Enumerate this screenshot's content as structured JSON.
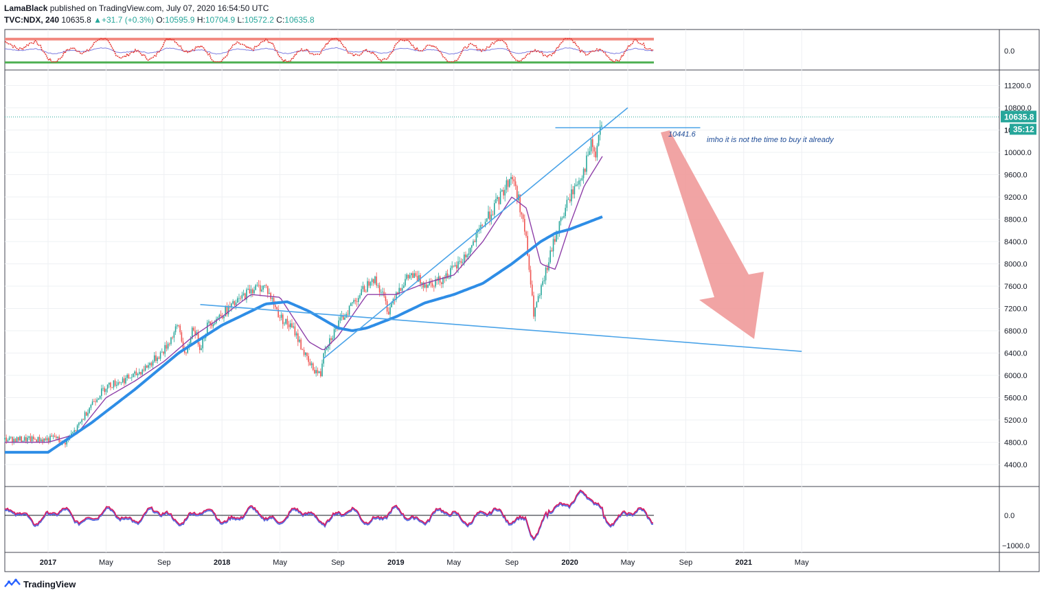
{
  "header": {
    "publisher": "LamaBlack",
    "published_text": "published on TradingView.com, July 07, 2020 16:54:50 UTC",
    "symbol": "TVC:NDX, 240",
    "last": "10635.8",
    "change": "+31.7 (+0.3%)",
    "o_label": "O:",
    "o_value": "10595.9",
    "h_label": "H:",
    "h_value": "10704.9",
    "l_label": "L:",
    "l_value": "10572.2",
    "c_label": "C:",
    "c_value": "10635.8"
  },
  "footer": {
    "brand": "TradingView"
  },
  "colors": {
    "up": "#26a69a",
    "down": "#ef5350",
    "trendline": "#4aa3e8",
    "ma_slow": "#2e8de6",
    "ma_fast": "#8e3fa8",
    "arrow": "#ef9a9a",
    "osc_red": "#e53935",
    "osc_blue": "#7e7ee0",
    "band_top": "#f28b82",
    "band_bottom": "#4caf50"
  },
  "chart_data": {
    "type": "candlestick",
    "symbol": "TVC:NDX",
    "ylim": [
      4000,
      11500
    ],
    "price_ticks": [
      "11200.0",
      "10800.0",
      "10400.0",
      "10000.0",
      "9600.0",
      "9200.0",
      "8800.0",
      "8400.0",
      "8000.0",
      "7600.0",
      "7200.0",
      "6800.0",
      "6400.0",
      "6000.0",
      "5600.0",
      "5200.0",
      "4800.0",
      "4400.0"
    ],
    "x_ticks": [
      "2017",
      "May",
      "Sep",
      "2018",
      "May",
      "Sep",
      "2019",
      "May",
      "Sep",
      "2020",
      "May",
      "Sep",
      "2021",
      "May"
    ],
    "last_price_label": "10635.8",
    "countdown_label": "35:12",
    "partial_tick_label": "10",
    "top_panel": {
      "tick": "0.0"
    },
    "bottom_panel": {
      "ticks": [
        "0.0",
        "−1000.0"
      ]
    },
    "annotations": {
      "level": "10441.6",
      "note": "imho it is not the time to buy it already"
    },
    "price_path": [
      {
        "t": 0,
        "p": 4850
      },
      {
        "t": 0.5,
        "p": 4900
      },
      {
        "t": 1,
        "p": 4750
      },
      {
        "t": 2,
        "p": 5050
      },
      {
        "t": 3,
        "p": 5500
      },
      {
        "t": 4,
        "p": 5800
      },
      {
        "t": 5,
        "p": 5900
      },
      {
        "t": 6,
        "p": 6000
      },
      {
        "t": 7,
        "p": 6200
      },
      {
        "t": 8,
        "p": 6450
      },
      {
        "t": 9,
        "p": 6900
      },
      {
        "t": 9.5,
        "p": 6300
      },
      {
        "t": 10,
        "p": 6900
      },
      {
        "t": 10.5,
        "p": 6500
      },
      {
        "t": 11,
        "p": 6900
      },
      {
        "t": 12,
        "p": 7100
      },
      {
        "t": 13,
        "p": 7300
      },
      {
        "t": 14,
        "p": 7550
      },
      {
        "t": 15,
        "p": 7600
      },
      {
        "t": 16,
        "p": 7050
      },
      {
        "t": 17,
        "p": 6800
      },
      {
        "t": 18,
        "p": 6200
      },
      {
        "t": 18.8,
        "p": 6000
      },
      {
        "t": 19,
        "p": 6450
      },
      {
        "t": 20,
        "p": 6900
      },
      {
        "t": 21,
        "p": 7300
      },
      {
        "t": 22,
        "p": 7600
      },
      {
        "t": 22.3,
        "p": 7800
      },
      {
        "t": 23,
        "p": 7500
      },
      {
        "t": 23.5,
        "p": 7150
      },
      {
        "t": 24,
        "p": 7500
      },
      {
        "t": 25,
        "p": 7800
      },
      {
        "t": 26,
        "p": 7650
      },
      {
        "t": 27,
        "p": 7700
      },
      {
        "t": 28,
        "p": 7900
      },
      {
        "t": 29,
        "p": 8200
      },
      {
        "t": 30,
        "p": 8700
      },
      {
        "t": 31,
        "p": 9100
      },
      {
        "t": 32,
        "p": 9600
      },
      {
        "t": 32.6,
        "p": 9000
      },
      {
        "t": 33,
        "p": 8400
      },
      {
        "t": 33.5,
        "p": 7100
      },
      {
        "t": 34,
        "p": 7500
      },
      {
        "t": 35,
        "p": 8500
      },
      {
        "t": 36,
        "p": 9200
      },
      {
        "t": 37,
        "p": 9700
      },
      {
        "t": 37.5,
        "p": 10150
      },
      {
        "t": 37.8,
        "p": 9900
      },
      {
        "t": 38,
        "p": 10300
      },
      {
        "t": 38.3,
        "p": 10636
      }
    ],
    "ma_slow_path": [
      {
        "t": 0,
        "p": 4620
      },
      {
        "t": 3,
        "p": 5150
      },
      {
        "t": 6,
        "p": 5750
      },
      {
        "t": 9,
        "p": 6400
      },
      {
        "t": 12,
        "p": 6900
      },
      {
        "t": 14,
        "p": 7150
      },
      {
        "t": 15,
        "p": 7280
      },
      {
        "t": 16.5,
        "p": 7320
      },
      {
        "t": 18,
        "p": 7150
      },
      {
        "t": 20,
        "p": 6850
      },
      {
        "t": 21,
        "p": 6800
      },
      {
        "t": 22,
        "p": 6850
      },
      {
        "t": 24,
        "p": 7050
      },
      {
        "t": 26,
        "p": 7300
      },
      {
        "t": 28,
        "p": 7450
      },
      {
        "t": 30,
        "p": 7650
      },
      {
        "t": 32,
        "p": 8000
      },
      {
        "t": 34,
        "p": 8400
      },
      {
        "t": 35,
        "p": 8550
      },
      {
        "t": 36,
        "p": 8620
      },
      {
        "t": 38.3,
        "p": 8850
      }
    ],
    "ma_fast_path": [
      {
        "t": 0,
        "p": 4800
      },
      {
        "t": 2,
        "p": 4950
      },
      {
        "t": 4,
        "p": 5600
      },
      {
        "t": 6,
        "p": 5900
      },
      {
        "t": 8,
        "p": 6250
      },
      {
        "t": 10,
        "p": 6700
      },
      {
        "t": 12,
        "p": 7050
      },
      {
        "t": 14,
        "p": 7450
      },
      {
        "t": 16,
        "p": 7400
      },
      {
        "t": 18,
        "p": 6600
      },
      {
        "t": 19,
        "p": 6450
      },
      {
        "t": 20,
        "p": 6700
      },
      {
        "t": 22,
        "p": 7450
      },
      {
        "t": 24,
        "p": 7450
      },
      {
        "t": 26,
        "p": 7650
      },
      {
        "t": 28,
        "p": 7800
      },
      {
        "t": 30,
        "p": 8400
      },
      {
        "t": 32,
        "p": 9200
      },
      {
        "t": 33,
        "p": 9000
      },
      {
        "t": 34,
        "p": 8000
      },
      {
        "t": 35,
        "p": 7900
      },
      {
        "t": 36,
        "p": 8700
      },
      {
        "t": 37,
        "p": 9400
      },
      {
        "t": 38.3,
        "p": 9950
      }
    ],
    "trendlines": [
      {
        "t1": 10.5,
        "p1": 7270,
        "t2": 52,
        "p2": 6430
      },
      {
        "t1": 19,
        "p1": 6300,
        "t2": 40,
        "p2": 10800
      },
      {
        "t1": 35,
        "p1": 10441.6,
        "t2": 45,
        "p2": 10441.6
      }
    ]
  }
}
